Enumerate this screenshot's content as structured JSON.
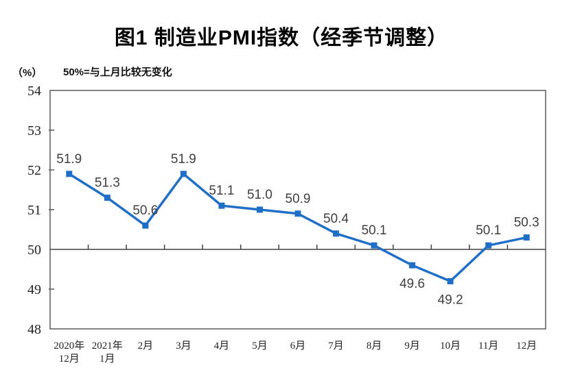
{
  "header": {
    "title": "图1 制造业PMI指数（经季节调整）"
  },
  "axis_note": {
    "unit": "（%）",
    "baseline_note": "50%=与上月比较无变化"
  },
  "chart_data": {
    "type": "line",
    "title": "图1 制造业PMI指数（经季节调整）",
    "subtitle": "50%=与上月比较无变化",
    "unit": "（%）",
    "categories": [
      "2020年\n12月",
      "2021年\n1月",
      "2月",
      "3月",
      "4月",
      "5月",
      "6月",
      "7月",
      "8月",
      "9月",
      "10月",
      "11月",
      "12月"
    ],
    "values": [
      51.9,
      51.3,
      50.6,
      51.9,
      51.1,
      51.0,
      50.9,
      50.4,
      50.1,
      49.6,
      49.2,
      50.1,
      50.3
    ],
    "data_labels": [
      "51.9",
      "51.3",
      "50.6",
      "51.9",
      "51.1",
      "51.0",
      "50.9",
      "50.4",
      "50.1",
      "49.6",
      "49.2",
      "50.1",
      "50.3"
    ],
    "label_positions": [
      "above",
      "above",
      "above",
      "above",
      "above",
      "above",
      "above",
      "above",
      "above",
      "below",
      "below",
      "above",
      "above"
    ],
    "xlabel": "",
    "ylabel": "（%）",
    "ylim": [
      48,
      54
    ],
    "yticks": [
      48,
      49,
      50,
      51,
      52,
      53,
      54
    ],
    "baseline_value": 50,
    "grid": "off",
    "legend": "none",
    "colors": {
      "line": "#1f6fc8",
      "marker": "#1f6fc8",
      "plot_border": "#595959",
      "baseline": "#404040",
      "tick_label": "#222222",
      "data_label": "#3f3f3f"
    }
  }
}
